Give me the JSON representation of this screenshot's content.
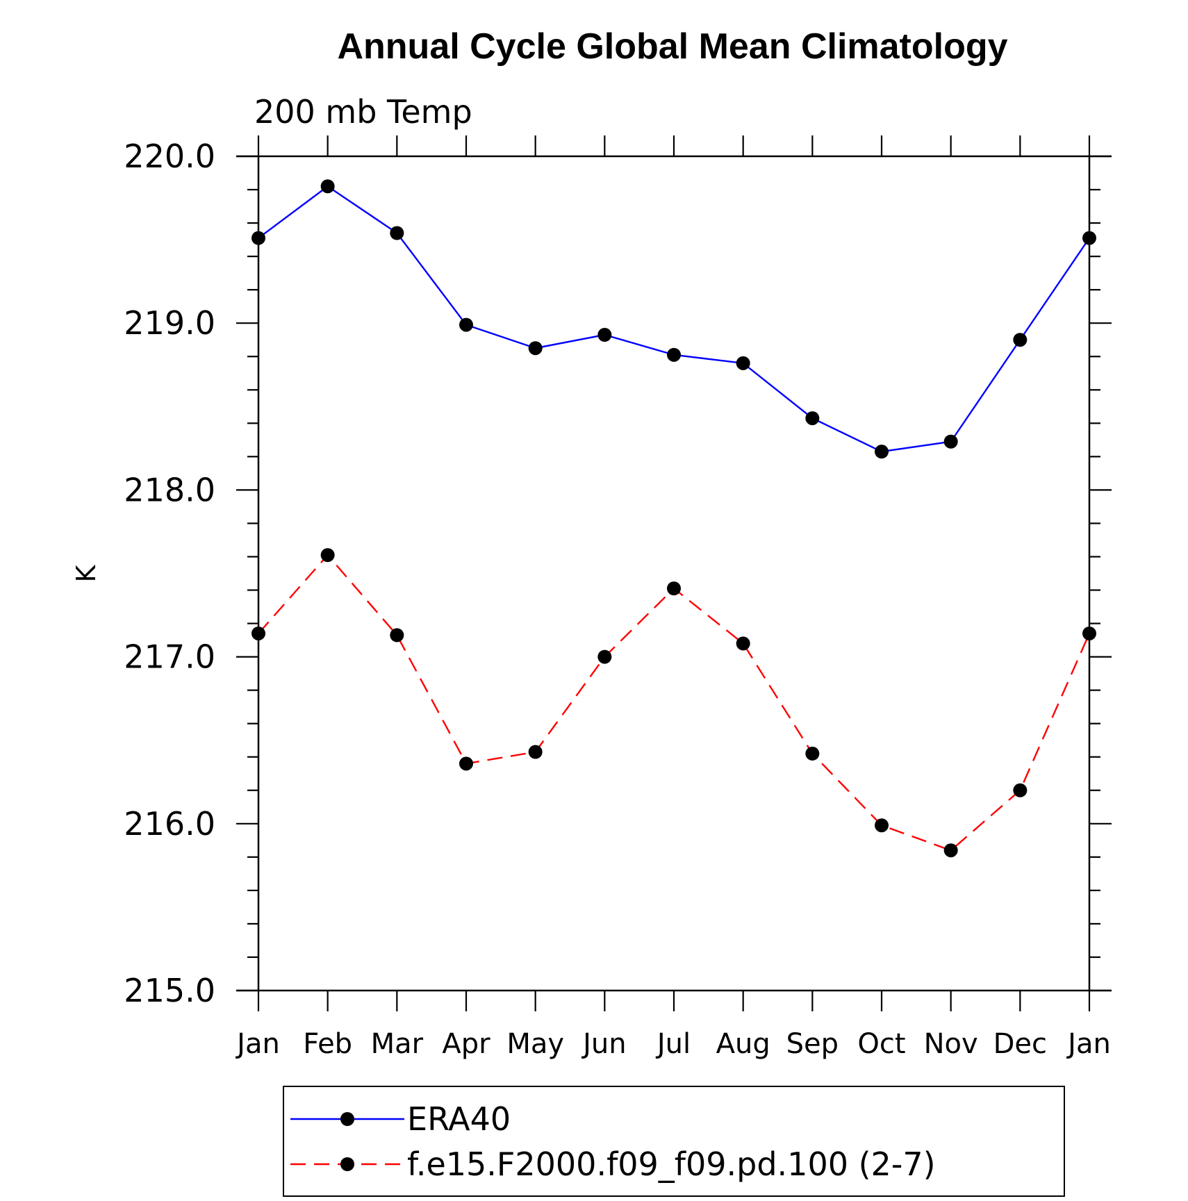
{
  "chart_data": {
    "type": "line",
    "title": "Annual Cycle Global Mean Climatology",
    "subtitle": "200 mb Temp",
    "xlabel": "",
    "ylabel": "K",
    "categories": [
      "Jan",
      "Feb",
      "Mar",
      "Apr",
      "May",
      "Jun",
      "Jul",
      "Aug",
      "Sep",
      "Oct",
      "Nov",
      "Dec",
      "Jan"
    ],
    "ylim": [
      215.0,
      220.0
    ],
    "yticks": [
      "215.0",
      "216.0",
      "217.0",
      "218.0",
      "219.0",
      "220.0"
    ],
    "grid": false,
    "legend_position": "bottom",
    "series": [
      {
        "name": "ERA40",
        "color": "#0000ff",
        "line_style": "solid",
        "marker": "filled-circle",
        "values": [
          219.51,
          219.82,
          219.54,
          218.99,
          218.85,
          218.93,
          218.81,
          218.76,
          218.43,
          218.23,
          218.29,
          218.9,
          219.51
        ]
      },
      {
        "name": "f.e15.F2000.f09_f09.pd.100 (2-7)",
        "color": "#ff0000",
        "line_style": "dashed",
        "marker": "filled-circle",
        "values": [
          217.14,
          217.61,
          217.13,
          216.36,
          216.43,
          217.0,
          217.41,
          217.08,
          216.42,
          215.99,
          215.84,
          216.2,
          217.14
        ]
      }
    ]
  }
}
